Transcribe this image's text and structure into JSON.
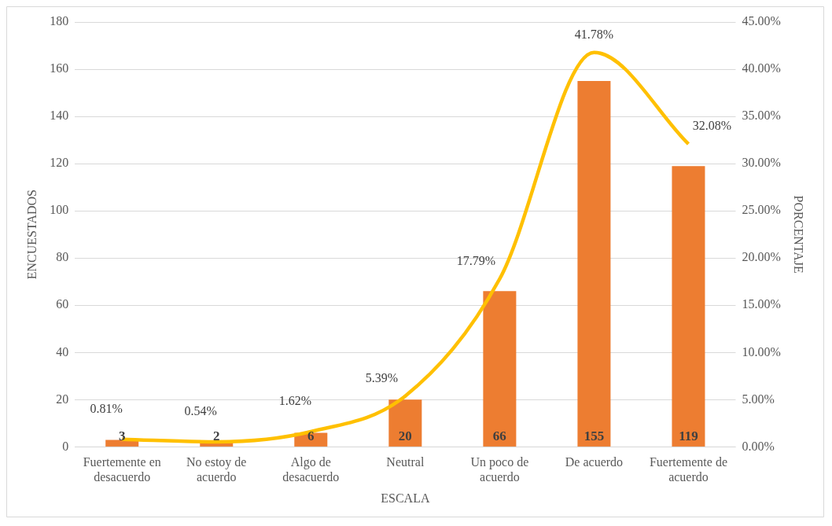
{
  "chart_data": {
    "type": "bar",
    "xlabel": "ESCALA",
    "ylabel": "ENCUESTADOS",
    "y2label": "PORCENTAJE",
    "categories": [
      "Fuertemente en desacuerdo",
      "No estoy de acuerdo",
      "Algo de desacuerdo",
      "Neutral",
      "Un poco de acuerdo",
      "De acuerdo",
      "Fuertemente de acuerdo"
    ],
    "series": [
      {
        "color": "#ed7d31",
        "values": [
          3,
          2,
          6,
          20,
          66,
          155,
          119
        ],
        "value_labels": [
          "3",
          "2",
          "6",
          "20",
          "66",
          "155",
          "119"
        ]
      },
      {
        "type": "line",
        "axis": "y2",
        "color": "#ffc000",
        "marker": "none",
        "values": [
          0.81,
          0.54,
          1.62,
          5.39,
          17.79,
          41.78,
          32.08
        ],
        "value_labels": [
          "0.81%",
          "0.54%",
          "1.62%",
          "5.39%",
          "17.79%",
          "41.78%",
          "32.08%"
        ]
      }
    ],
    "ylim": [
      0,
      180
    ],
    "yticks": [
      0,
      20,
      40,
      60,
      80,
      100,
      120,
      140,
      160,
      180
    ],
    "y2lim": [
      0,
      45
    ],
    "y2ticks": [
      {
        "value": 0,
        "label": "0.00%"
      },
      {
        "value": 5,
        "label": "5.00%"
      },
      {
        "value": 10,
        "label": "10.00%"
      },
      {
        "value": 15,
        "label": "15.00%"
      },
      {
        "value": 20,
        "label": "20.00%"
      },
      {
        "value": 25,
        "label": "25.00%"
      },
      {
        "value": 30,
        "label": "30.00%"
      },
      {
        "value": 35,
        "label": "35.00%"
      },
      {
        "value": 40,
        "label": "40.00%"
      },
      {
        "value": 45,
        "label": "45.00%"
      }
    ],
    "grid": "y",
    "legend": false
  }
}
